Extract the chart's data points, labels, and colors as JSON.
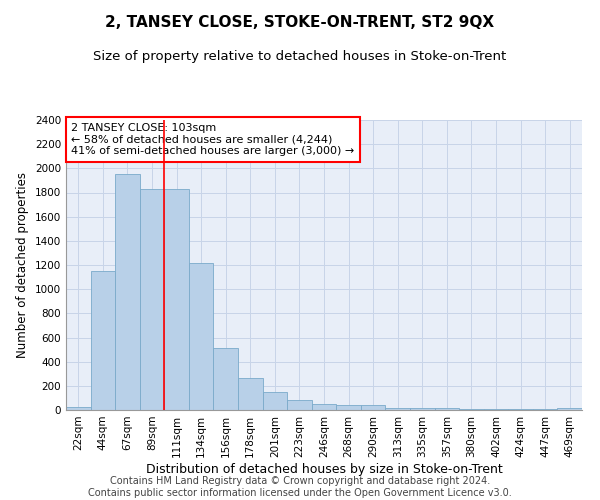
{
  "title": "2, TANSEY CLOSE, STOKE-ON-TRENT, ST2 9QX",
  "subtitle": "Size of property relative to detached houses in Stoke-on-Trent",
  "xlabel": "Distribution of detached houses by size in Stoke-on-Trent",
  "ylabel": "Number of detached properties",
  "categories": [
    "22sqm",
    "44sqm",
    "67sqm",
    "89sqm",
    "111sqm",
    "134sqm",
    "156sqm",
    "178sqm",
    "201sqm",
    "223sqm",
    "246sqm",
    "268sqm",
    "290sqm",
    "313sqm",
    "335sqm",
    "357sqm",
    "380sqm",
    "402sqm",
    "424sqm",
    "447sqm",
    "469sqm"
  ],
  "values": [
    28,
    1150,
    1950,
    1830,
    1830,
    1220,
    510,
    265,
    150,
    80,
    50,
    45,
    40,
    20,
    20,
    15,
    5,
    5,
    5,
    5,
    20
  ],
  "bar_color": "#b8d0e8",
  "bar_edgecolor": "#7aaaca",
  "vline_x": 3.5,
  "vline_color": "red",
  "annotation_text": "2 TANSEY CLOSE: 103sqm\n← 58% of detached houses are smaller (4,244)\n41% of semi-detached houses are larger (3,000) →",
  "annotation_box_color": "white",
  "annotation_box_edgecolor": "red",
  "ylim": [
    0,
    2400
  ],
  "yticks": [
    0,
    200,
    400,
    600,
    800,
    1000,
    1200,
    1400,
    1600,
    1800,
    2000,
    2200,
    2400
  ],
  "grid_color": "#c8d4e8",
  "background_color": "#e8eef8",
  "footer_line1": "Contains HM Land Registry data © Crown copyright and database right 2024.",
  "footer_line2": "Contains public sector information licensed under the Open Government Licence v3.0.",
  "title_fontsize": 11,
  "subtitle_fontsize": 9.5,
  "xlabel_fontsize": 9,
  "ylabel_fontsize": 8.5,
  "tick_fontsize": 7.5,
  "footer_fontsize": 7
}
